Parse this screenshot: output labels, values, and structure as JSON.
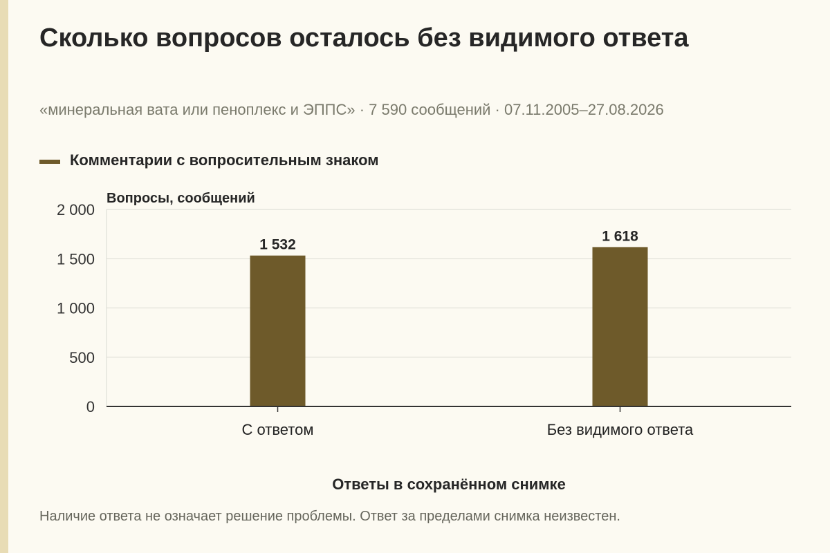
{
  "title": "Сколько вопросов осталось без видимого ответа",
  "subtitle": "«минеральная вата или пеноплекс и ЭППС» · 7 590 сообщений · 07.11.2005–27.08.2026",
  "note": "Наличие ответа не означает решение проблемы. Ответ за пределами снимка неизвестен.",
  "colors": {
    "bar": "#6e5a2a",
    "grid": "#d9d9d2",
    "axis": "#333333"
  },
  "chart_data": {
    "type": "bar",
    "categories": [
      "С ответом",
      "Без видимого ответа"
    ],
    "series": [
      {
        "name": "Комментарии с вопросительным знаком",
        "values": [
          1532,
          1618
        ]
      }
    ],
    "value_labels": [
      "1 532",
      "1 618"
    ],
    "ylabel": "Вопросы, сообщений",
    "xlabel": "Ответы в сохранённом снимке",
    "ylim": [
      0,
      2000
    ],
    "yticks": [
      0,
      500,
      1000,
      1500,
      2000
    ],
    "ytick_labels": [
      "0",
      "500",
      "1 000",
      "1 500",
      "2 000"
    ],
    "grid": true,
    "legend": "top-left"
  }
}
